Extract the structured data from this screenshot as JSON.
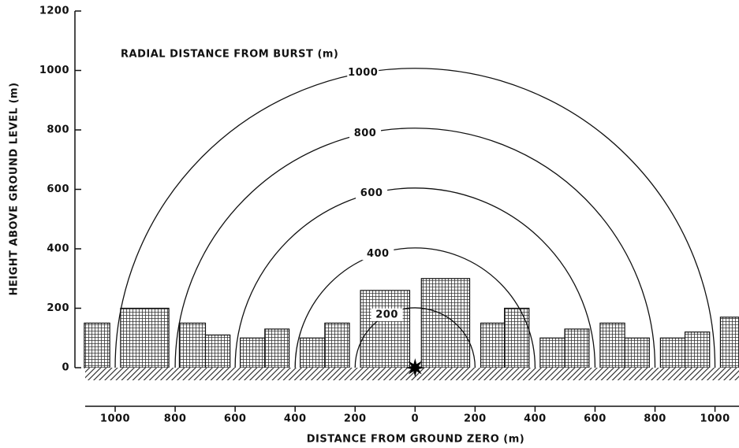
{
  "chart_data": {
    "type": "radial",
    "annotation": "RADIAL DISTANCE FROM BURST  (m)",
    "xlabel": "DISTANCE FROM GROUND ZERO  (m)",
    "ylabel": "HEIGHT ABOVE GROUND LEVEL  (m)",
    "radii": [
      200,
      400,
      600,
      800,
      1000
    ],
    "buildings": {
      "x0": [
        -1103,
        -982,
        -786,
        -699,
        -583,
        -501,
        -383,
        -301,
        -182,
        21,
        219,
        298,
        417,
        499,
        617,
        699,
        818,
        900,
        1018
      ],
      "x1": [
        -1018,
        -821,
        -699,
        -617,
        -501,
        -420,
        -301,
        -219,
        -18,
        182,
        298,
        380,
        499,
        580,
        699,
        781,
        900,
        982,
        1080
      ],
      "heights": [
        150,
        200,
        150,
        110,
        100,
        130,
        100,
        150,
        260,
        300,
        150,
        200,
        100,
        130,
        150,
        100,
        100,
        120,
        170
      ]
    },
    "xlim": [
      -1100,
      1080
    ],
    "xticks": [
      {
        "value": -1000,
        "label": "1000"
      },
      {
        "value": -800,
        "label": "800"
      },
      {
        "value": -600,
        "label": "600"
      },
      {
        "value": -400,
        "label": "400"
      },
      {
        "value": -200,
        "label": "200"
      },
      0,
      200,
      400,
      600,
      800,
      1000
    ],
    "ylim": [
      0,
      1200
    ],
    "yticks": [
      0,
      200,
      400,
      600,
      800,
      1000,
      1200
    ]
  }
}
